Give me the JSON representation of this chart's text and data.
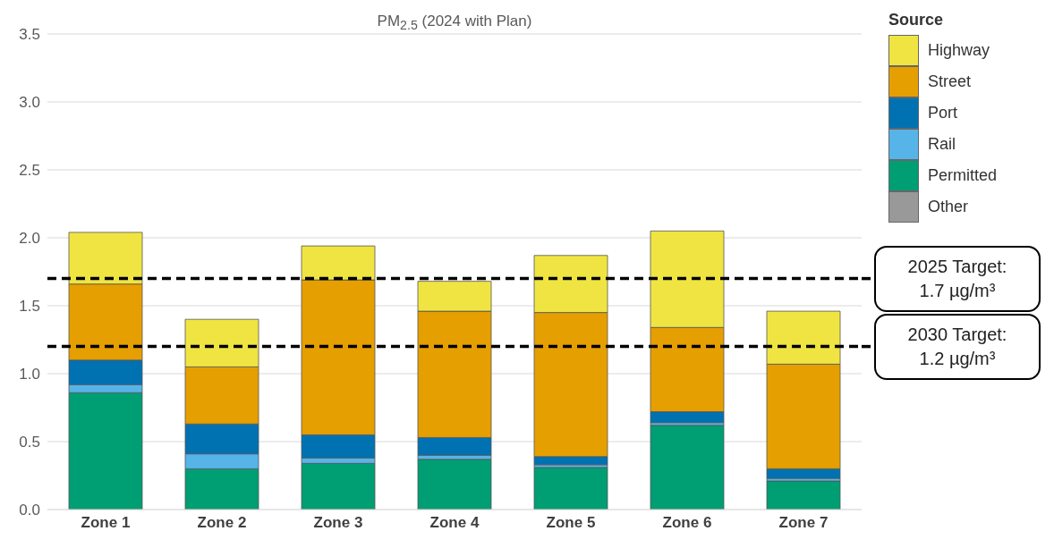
{
  "chart_data": {
    "type": "bar",
    "title": "PM$_{2.5}$ (2024 with Plan)",
    "legend_title": "Source",
    "categories": [
      "Zone 1",
      "Zone 2",
      "Zone 3",
      "Zone 4",
      "Zone 5",
      "Zone 6",
      "Zone 7"
    ],
    "stacked": true,
    "series": [
      {
        "name": "Other",
        "color": "#999999",
        "values": [
          null,
          null,
          null,
          null,
          null,
          null,
          null
        ]
      },
      {
        "name": "Permitted",
        "color": "#009e73",
        "values": [
          0.86,
          0.3,
          0.34,
          0.37,
          0.31,
          0.62,
          0.21
        ]
      },
      {
        "name": "Rail",
        "color": "#56b4e9",
        "values": [
          0.06,
          0.11,
          0.04,
          0.03,
          0.02,
          0.02,
          0.02
        ]
      },
      {
        "name": "Port",
        "color": "#0072b2",
        "values": [
          0.18,
          0.22,
          0.17,
          0.13,
          0.06,
          0.08,
          0.07
        ]
      },
      {
        "name": "Street",
        "color": "#e69f00",
        "values": [
          0.56,
          0.42,
          1.14,
          0.93,
          1.06,
          0.62,
          0.77
        ]
      },
      {
        "name": "Highway",
        "color": "#f0e442",
        "values": [
          0.38,
          0.35,
          0.25,
          0.22,
          0.42,
          0.71,
          0.39
        ]
      }
    ],
    "ylim": [
      0,
      3.5
    ],
    "yticks": [
      {
        "value": 0,
        "label": "0.0"
      },
      {
        "value": 0.5,
        "label": "0.5"
      },
      {
        "value": 1,
        "label": "1.0"
      },
      {
        "value": 1.5,
        "label": "1.5"
      },
      {
        "value": 2,
        "label": "2.0"
      },
      {
        "value": 2.5,
        "label": "2.5"
      },
      {
        "value": 3,
        "label": "3.0"
      },
      {
        "value": 3.5,
        "label": "3.5"
      }
    ],
    "grid": "y",
    "legend": "top right",
    "ref_lines": [
      {
        "axis": "y",
        "value": 1.7,
        "label": "2025 Target: 1.7 µg/m³",
        "color": "#000000",
        "line_style": "dashed"
      },
      {
        "axis": "y",
        "value": 1.2,
        "label": "2030 Target: 1.2 µg/m³",
        "color": "#000000",
        "line_style": "dashed"
      }
    ]
  }
}
